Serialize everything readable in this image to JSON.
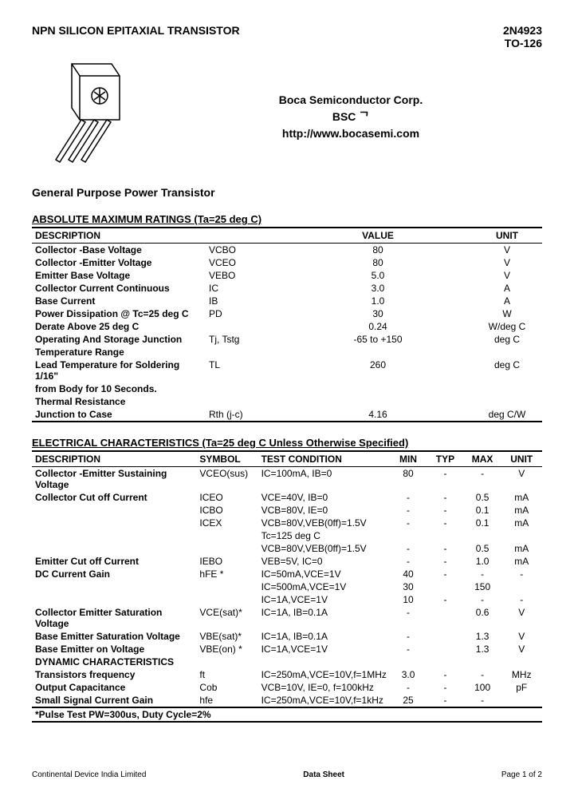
{
  "header": {
    "title": "NPN SILICON  EPITAXIAL TRANSISTOR",
    "part": "2N4923",
    "package": "TO-126"
  },
  "company": {
    "name": "Boca Semiconductor Corp.",
    "abbrev": "BSC ᄀ",
    "url": "http://www.bocasemi.com"
  },
  "subtitle": "General Purpose Power Transistor",
  "amr": {
    "title": "ABSOLUTE MAXIMUM RATINGS (Ta=25 deg C)",
    "headers": {
      "desc": "DESCRIPTION",
      "value": "VALUE",
      "unit": "UNIT"
    },
    "rows": [
      {
        "desc": "Collector -Base Voltage",
        "sym": "VCBO",
        "val": "80",
        "unit": "V"
      },
      {
        "desc": "Collector -Emitter Voltage",
        "sym": "VCEO",
        "val": "80",
        "unit": "V"
      },
      {
        "desc": "Emitter Base Voltage",
        "sym": "VEBO",
        "val": "5.0",
        "unit": "V"
      },
      {
        "desc": "Collector Current  Continuous",
        "sym": "IC",
        "val": "3.0",
        "unit": "A"
      },
      {
        "desc": "Base Current",
        "sym": "IB",
        "val": "1.0",
        "unit": "A"
      },
      {
        "desc": "Power Dissipation @ Tc=25 deg C",
        "sym": "PD",
        "val": "30",
        "unit": "W"
      },
      {
        "desc": "Derate Above 25 deg C",
        "sym": "",
        "val": "0.24",
        "unit": "W/deg C"
      },
      {
        "desc": "Operating And Storage Junction",
        "sym": "Tj, Tstg",
        "val": "-65 to +150",
        "unit": "deg C"
      },
      {
        "desc": "Temperature Range",
        "sym": "",
        "val": "",
        "unit": ""
      },
      {
        "desc": "Lead Temperature for Soldering 1/16\"",
        "sym": "TL",
        "val": "260",
        "unit": "deg C"
      },
      {
        "desc": "from Body for 10 Seconds.",
        "sym": "",
        "val": "",
        "unit": ""
      },
      {
        "desc": "Thermal Resistance",
        "sym": "",
        "val": "",
        "unit": ""
      },
      {
        "desc": "Junction to Case",
        "sym": "Rth (j-c)",
        "val": "4.16",
        "unit": "deg C/W"
      }
    ]
  },
  "ec": {
    "title": "ELECTRICAL CHARACTERISTICS (Ta=25 deg C Unless Otherwise Specified)",
    "headers": {
      "desc": "DESCRIPTION",
      "sym": "SYMBOL",
      "cond": "TEST CONDITION",
      "min": "MIN",
      "typ": "TYP",
      "max": "MAX",
      "unit": "UNIT"
    },
    "rows": [
      {
        "desc": "Collector -Emitter Sustaining Voltage",
        "sym": "VCEO(sus)",
        "cond": "IC=100mA, IB=0",
        "min": "80",
        "typ": "-",
        "max": "-",
        "unit": "V"
      },
      {
        "desc": "Collector Cut off Current",
        "sym": "ICEO",
        "cond": "VCE=40V, IB=0",
        "min": "-",
        "typ": "-",
        "max": "0.5",
        "unit": "mA"
      },
      {
        "desc": "",
        "sym": "ICBO",
        "cond": "VCB=80V, IE=0",
        "min": "-",
        "typ": "-",
        "max": "0.1",
        "unit": "mA"
      },
      {
        "desc": "",
        "sym": "ICEX",
        "cond": "VCB=80V,VEB(0ff)=1.5V",
        "min": "-",
        "typ": "-",
        "max": "0.1",
        "unit": "mA"
      },
      {
        "desc": "",
        "sym": "",
        "cond": "Tc=125 deg C",
        "min": "",
        "typ": "",
        "max": "",
        "unit": ""
      },
      {
        "desc": "",
        "sym": "",
        "cond": "VCB=80V,VEB(0ff)=1.5V",
        "min": "-",
        "typ": "-",
        "max": "0.5",
        "unit": "mA"
      },
      {
        "desc": "Emitter Cut off Current",
        "sym": "IEBO",
        "cond": "VEB=5V, IC=0",
        "min": "-",
        "typ": "-",
        "max": "1.0",
        "unit": "mA"
      },
      {
        "desc": "DC Current Gain",
        "sym": "hFE *",
        "cond": "IC=50mA,VCE=1V",
        "min": "40",
        "typ": "-",
        "max": "-",
        "unit": "-"
      },
      {
        "desc": "",
        "sym": "",
        "cond": "IC=500mA,VCE=1V",
        "min": "30",
        "typ": "",
        "max": "150",
        "unit": ""
      },
      {
        "desc": "",
        "sym": "",
        "cond": "IC=1A,VCE=1V",
        "min": "10",
        "typ": "-",
        "max": "-",
        "unit": "-"
      },
      {
        "desc": "Collector Emitter Saturation Voltage",
        "sym": "VCE(sat)*",
        "cond": "IC=1A,  IB=0.1A",
        "min": "-",
        "typ": "",
        "max": "0.6",
        "unit": "V"
      },
      {
        "desc": "Base Emitter Saturation Voltage",
        "sym": "VBE(sat)*",
        "cond": "IC=1A,  IB=0.1A",
        "min": "-",
        "typ": "",
        "max": "1.3",
        "unit": "V"
      },
      {
        "desc": "Base Emitter on Voltage",
        "sym": "VBE(on) *",
        "cond": "IC=1A,VCE=1V",
        "min": "-",
        "typ": "",
        "max": "1.3",
        "unit": "V"
      }
    ],
    "dynamic_title": "DYNAMIC CHARACTERISTICS",
    "dynamic_rows": [
      {
        "desc": "Transistors frequency",
        "sym": "ft",
        "cond": "IC=250mA,VCE=10V,f=1MHz",
        "min": "3.0",
        "typ": "-",
        "max": "-",
        "unit": "MHz"
      },
      {
        "desc": "Output Capacitance",
        "sym": "Cob",
        "cond": "VCB=10V, IE=0, f=100kHz",
        "min": "-",
        "typ": "-",
        "max": "100",
        "unit": "pF"
      },
      {
        "desc": "Small Signal Current Gain",
        "sym": "hfe",
        "cond": "IC=250mA,VCE=10V,f=1kHz",
        "min": "25",
        "typ": "-",
        "max": "-",
        "unit": ""
      }
    ],
    "note": "*Pulse Test PW=300us, Duty Cycle=2%"
  },
  "footer": {
    "left": "Continental Device India Limited",
    "mid": "Data Sheet",
    "right": "Page 1 of 2"
  },
  "colors": {
    "text": "#000000",
    "bg": "#ffffff",
    "pkg_fill": "#ffffff",
    "pkg_stroke": "#000000"
  }
}
